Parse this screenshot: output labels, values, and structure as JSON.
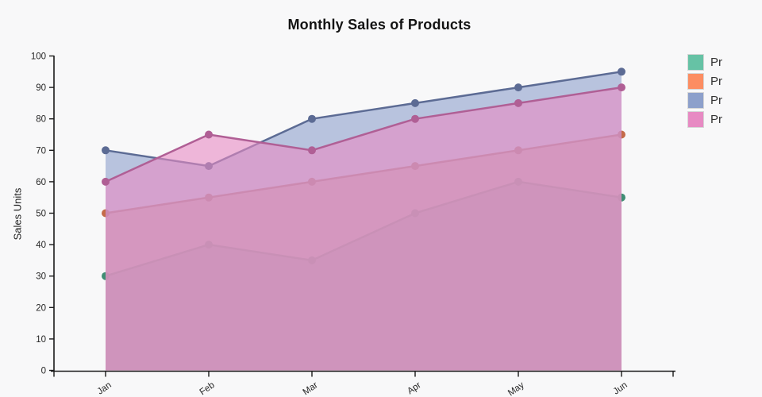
{
  "chart_data": {
    "type": "area",
    "title": "Monthly Sales of Products",
    "xlabel": "",
    "ylabel": "Sales Units",
    "categories": [
      "Jan",
      "Feb",
      "Mar",
      "Apr",
      "May",
      "Jun"
    ],
    "series": [
      {
        "name": "Pr",
        "color": "#66c2a5",
        "line_color": "#3f8e74",
        "values": [
          30,
          40,
          35,
          50,
          60,
          55
        ]
      },
      {
        "name": "Pr",
        "color": "#fc8d62",
        "line_color": "#c56b49",
        "values": [
          50,
          55,
          60,
          65,
          70,
          75
        ]
      },
      {
        "name": "Pr",
        "color": "#8da0cb",
        "line_color": "#5c6b94",
        "values": [
          70,
          65,
          80,
          85,
          90,
          95
        ]
      },
      {
        "name": "Pr",
        "color": "#e78ac3",
        "line_color": "#b05f95",
        "values": [
          60,
          75,
          70,
          80,
          85,
          90
        ]
      }
    ],
    "ylim": [
      0,
      100
    ],
    "ytick_step": 10,
    "yticks": [
      0,
      10,
      20,
      30,
      40,
      50,
      60,
      70,
      80,
      90,
      100
    ],
    "fill_opacity": 0.6,
    "grid": false,
    "legend_position": "right-top",
    "axis_color": "#1a1a1a",
    "tick_label_color": "#262626",
    "background_color": "#f8f8f9"
  }
}
